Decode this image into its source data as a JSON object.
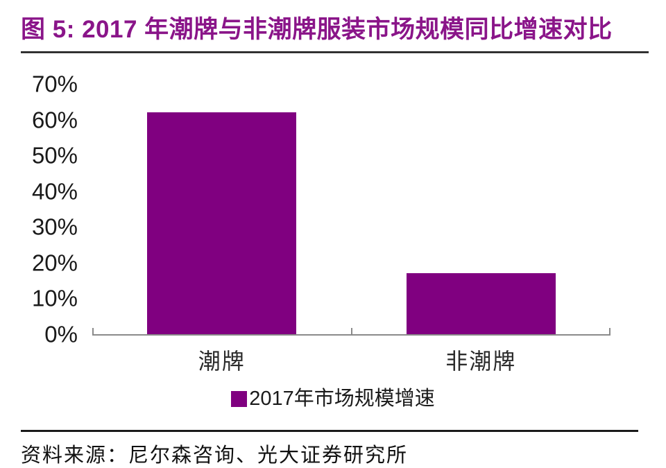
{
  "figure": {
    "title": "图 5: 2017 年潮牌与非潮牌服装市场规模同比增速对比"
  },
  "chart_data": {
    "type": "bar",
    "title": "2017 年潮牌与非潮牌服装市场规模同比增速对比",
    "categories": [
      "潮牌",
      "非潮牌"
    ],
    "values": [
      62,
      17
    ],
    "legend": [
      "2017年市场规模增速"
    ],
    "legend_position": "bottom",
    "xlabel": "",
    "ylabel": "",
    "ylim": [
      0,
      70
    ],
    "yticks": [
      0,
      10,
      20,
      30,
      40,
      50,
      60,
      70
    ],
    "ytick_format": "percent",
    "grid": false,
    "bar_color": "#800080"
  },
  "source": {
    "label": "资料来源：尼尔森咨询、光大证券研究所"
  },
  "colors": {
    "accent": "#800080",
    "title": "#8a1589",
    "axis": "#8a8a8a",
    "text": "#1a1a1a",
    "rule": "#1a1a1a"
  }
}
